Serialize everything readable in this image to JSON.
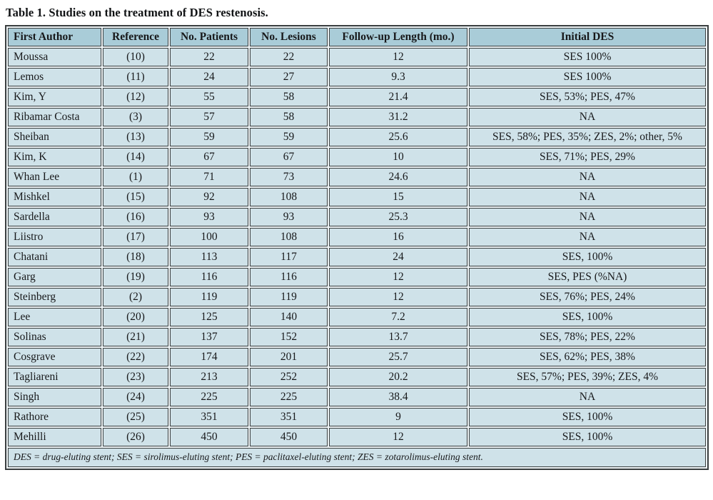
{
  "table": {
    "title": "Table 1. Studies on the treatment of DES restenosis.",
    "columns": [
      "First Author",
      "Reference",
      "No. Patients",
      "No. Lesions",
      "Follow-up Length (mo.)",
      "Initial DES"
    ],
    "rows": [
      [
        "Moussa",
        "(10)",
        "22",
        "22",
        "12",
        "SES 100%"
      ],
      [
        "Lemos",
        "(11)",
        "24",
        "27",
        "9.3",
        "SES 100%"
      ],
      [
        "Kim, Y",
        "(12)",
        "55",
        "58",
        "21.4",
        "SES, 53%; PES, 47%"
      ],
      [
        "Ribamar Costa",
        "(3)",
        "57",
        "58",
        "31.2",
        "NA"
      ],
      [
        "Sheiban",
        "(13)",
        "59",
        "59",
        "25.6",
        "SES, 58%; PES, 35%; ZES, 2%; other, 5%"
      ],
      [
        "Kim, K",
        "(14)",
        "67",
        "67",
        "10",
        "SES, 71%; PES, 29%"
      ],
      [
        "Whan Lee",
        "(1)",
        "71",
        "73",
        "24.6",
        "NA"
      ],
      [
        "Mishkel",
        "(15)",
        "92",
        "108",
        "15",
        "NA"
      ],
      [
        "Sardella",
        "(16)",
        "93",
        "93",
        "25.3",
        "NA"
      ],
      [
        "Liistro",
        "(17)",
        "100",
        "108",
        "16",
        "NA"
      ],
      [
        "Chatani",
        "(18)",
        "113",
        "117",
        "24",
        "SES, 100%"
      ],
      [
        "Garg",
        "(19)",
        "116",
        "116",
        "12",
        "SES, PES (%NA)"
      ],
      [
        "Steinberg",
        "(2)",
        "119",
        "119",
        "12",
        "SES, 76%; PES, 24%"
      ],
      [
        "Lee",
        "(20)",
        "125",
        "140",
        "7.2",
        "SES, 100%"
      ],
      [
        "Solinas",
        "(21)",
        "137",
        "152",
        "13.7",
        "SES, 78%; PES, 22%"
      ],
      [
        "Cosgrave",
        "(22)",
        "174",
        "201",
        "25.7",
        "SES, 62%; PES, 38%"
      ],
      [
        "Tagliareni",
        "(23)",
        "213",
        "252",
        "20.2",
        "SES, 57%; PES, 39%; ZES, 4%"
      ],
      [
        "Singh",
        "(24)",
        "225",
        "225",
        "38.4",
        "NA"
      ],
      [
        "Rathore",
        "(25)",
        "351",
        "351",
        "9",
        "SES, 100%"
      ],
      [
        "Mehilli",
        "(26)",
        "450",
        "450",
        "12",
        "SES, 100%"
      ]
    ],
    "footnote": "DES = drug-eluting stent; SES = sirolimus-eluting stent; PES = paclitaxel-eluting stent; ZES = zotarolimus-eluting stent.",
    "colors": {
      "header_bg": "#a9ccd8",
      "row_bg": "#cfe2e9",
      "border": "#3b3f40",
      "text": "#17181a"
    }
  }
}
